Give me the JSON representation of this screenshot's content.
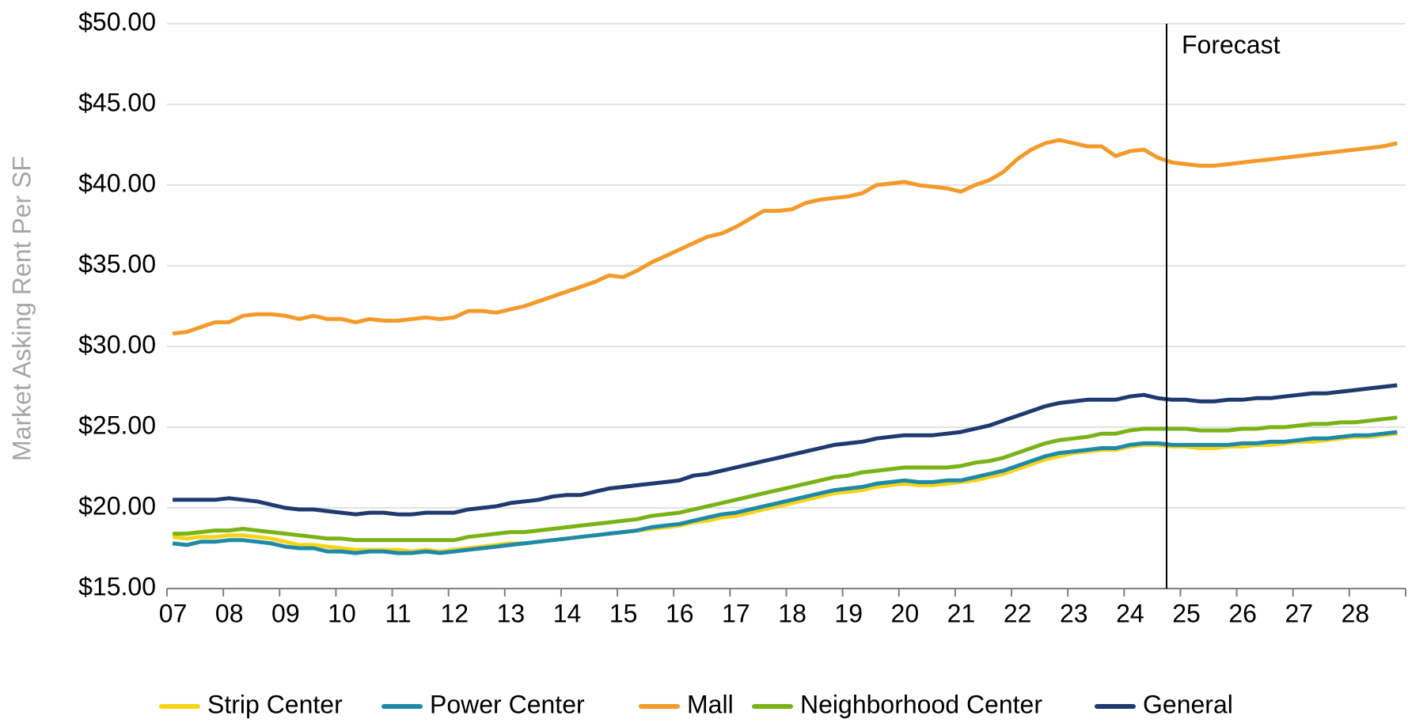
{
  "chart_data": {
    "type": "line",
    "y_label": "Market Asking Rent Per SF",
    "annotation": "Forecast",
    "categories": [
      "07",
      null,
      null,
      null,
      "08",
      null,
      null,
      null,
      "09",
      null,
      null,
      null,
      "10",
      null,
      null,
      null,
      "11",
      null,
      null,
      null,
      "12",
      null,
      null,
      null,
      "13",
      null,
      null,
      null,
      "14",
      null,
      null,
      null,
      "15",
      null,
      null,
      null,
      "16",
      null,
      null,
      null,
      "17",
      null,
      null,
      null,
      "18",
      null,
      null,
      null,
      "19",
      null,
      null,
      null,
      "20",
      null,
      null,
      null,
      "21",
      null,
      null,
      null,
      "22",
      null,
      null,
      null,
      "23",
      null,
      null,
      null,
      "24",
      null,
      null,
      null,
      "25",
      null,
      null,
      null,
      "26",
      null,
      null,
      null,
      "27",
      null,
      null,
      null,
      "28",
      null,
      null,
      null
    ],
    "series": [
      {
        "name": "Strip Center",
        "color": "#f7d417",
        "values": [
          18.2,
          18.1,
          18.2,
          18.2,
          18.3,
          18.3,
          18.2,
          18.1,
          17.9,
          17.7,
          17.7,
          17.6,
          17.5,
          17.4,
          17.4,
          17.4,
          17.4,
          17.3,
          17.4,
          17.3,
          17.4,
          17.5,
          17.6,
          17.7,
          17.8,
          17.8,
          17.9,
          18.0,
          18.1,
          18.2,
          18.3,
          18.4,
          18.5,
          18.6,
          18.7,
          18.8,
          18.9,
          19.1,
          19.2,
          19.4,
          19.5,
          19.7,
          19.9,
          20.1,
          20.3,
          20.5,
          20.7,
          20.9,
          21.0,
          21.1,
          21.3,
          21.4,
          21.5,
          21.4,
          21.4,
          21.5,
          21.6,
          21.7,
          21.9,
          22.1,
          22.4,
          22.7,
          23.0,
          23.2,
          23.4,
          23.5,
          23.6,
          23.6,
          23.8,
          23.9,
          23.9,
          23.8,
          23.8,
          23.7,
          23.7,
          23.8,
          23.8,
          23.9,
          23.9,
          24.0,
          24.1,
          24.1,
          24.2,
          24.3,
          24.4,
          24.4,
          24.5,
          24.6
        ]
      },
      {
        "name": "Power Center",
        "color": "#1f8aa8",
        "values": [
          17.8,
          17.7,
          17.9,
          17.9,
          18.0,
          18.0,
          17.9,
          17.8,
          17.6,
          17.5,
          17.5,
          17.3,
          17.3,
          17.2,
          17.3,
          17.3,
          17.2,
          17.2,
          17.3,
          17.2,
          17.3,
          17.4,
          17.5,
          17.6,
          17.7,
          17.8,
          17.9,
          18.0,
          18.1,
          18.2,
          18.3,
          18.4,
          18.5,
          18.6,
          18.8,
          18.9,
          19.0,
          19.2,
          19.4,
          19.6,
          19.7,
          19.9,
          20.1,
          20.3,
          20.5,
          20.7,
          20.9,
          21.1,
          21.2,
          21.3,
          21.5,
          21.6,
          21.7,
          21.6,
          21.6,
          21.7,
          21.7,
          21.9,
          22.1,
          22.3,
          22.6,
          22.9,
          23.2,
          23.4,
          23.5,
          23.6,
          23.7,
          23.7,
          23.9,
          24.0,
          24.0,
          23.9,
          23.9,
          23.9,
          23.9,
          23.9,
          24.0,
          24.0,
          24.1,
          24.1,
          24.2,
          24.3,
          24.3,
          24.4,
          24.5,
          24.5,
          24.6,
          24.7
        ]
      },
      {
        "name": "Mall",
        "color": "#f39a2b",
        "values": [
          30.8,
          30.9,
          31.2,
          31.5,
          31.5,
          31.9,
          32.0,
          32.0,
          31.9,
          31.7,
          31.9,
          31.7,
          31.7,
          31.5,
          31.7,
          31.6,
          31.6,
          31.7,
          31.8,
          31.7,
          31.8,
          32.2,
          32.2,
          32.1,
          32.3,
          32.5,
          32.8,
          33.1,
          33.4,
          33.7,
          34.0,
          34.4,
          34.3,
          34.7,
          35.2,
          35.6,
          36.0,
          36.4,
          36.8,
          37.0,
          37.4,
          37.9,
          38.4,
          38.4,
          38.5,
          38.9,
          39.1,
          39.2,
          39.3,
          39.5,
          40.0,
          40.1,
          40.2,
          40.0,
          39.9,
          39.8,
          39.6,
          40.0,
          40.3,
          40.8,
          41.6,
          42.2,
          42.6,
          42.8,
          42.6,
          42.4,
          42.4,
          41.8,
          42.1,
          42.2,
          41.7,
          41.4,
          41.3,
          41.2,
          41.2,
          41.3,
          41.4,
          41.5,
          41.6,
          41.7,
          41.8,
          41.9,
          42.0,
          42.1,
          42.2,
          42.3,
          42.4,
          42.6
        ]
      },
      {
        "name": "Neighborhood Center",
        "color": "#7ab317",
        "values": [
          18.4,
          18.4,
          18.5,
          18.6,
          18.6,
          18.7,
          18.6,
          18.5,
          18.4,
          18.3,
          18.2,
          18.1,
          18.1,
          18.0,
          18.0,
          18.0,
          18.0,
          18.0,
          18.0,
          18.0,
          18.0,
          18.2,
          18.3,
          18.4,
          18.5,
          18.5,
          18.6,
          18.7,
          18.8,
          18.9,
          19.0,
          19.1,
          19.2,
          19.3,
          19.5,
          19.6,
          19.7,
          19.9,
          20.1,
          20.3,
          20.5,
          20.7,
          20.9,
          21.1,
          21.3,
          21.5,
          21.7,
          21.9,
          22.0,
          22.2,
          22.3,
          22.4,
          22.5,
          22.5,
          22.5,
          22.5,
          22.6,
          22.8,
          22.9,
          23.1,
          23.4,
          23.7,
          24.0,
          24.2,
          24.3,
          24.4,
          24.6,
          24.6,
          24.8,
          24.9,
          24.9,
          24.9,
          24.9,
          24.8,
          24.8,
          24.8,
          24.9,
          24.9,
          25.0,
          25.0,
          25.1,
          25.2,
          25.2,
          25.3,
          25.3,
          25.4,
          25.5,
          25.6
        ]
      },
      {
        "name": "General",
        "color": "#1f3a6e",
        "values": [
          20.5,
          20.5,
          20.5,
          20.5,
          20.6,
          20.5,
          20.4,
          20.2,
          20.0,
          19.9,
          19.9,
          19.8,
          19.7,
          19.6,
          19.7,
          19.7,
          19.6,
          19.6,
          19.7,
          19.7,
          19.7,
          19.9,
          20.0,
          20.1,
          20.3,
          20.4,
          20.5,
          20.7,
          20.8,
          20.8,
          21.0,
          21.2,
          21.3,
          21.4,
          21.5,
          21.6,
          21.7,
          22.0,
          22.1,
          22.3,
          22.5,
          22.7,
          22.9,
          23.1,
          23.3,
          23.5,
          23.7,
          23.9,
          24.0,
          24.1,
          24.3,
          24.4,
          24.5,
          24.5,
          24.5,
          24.6,
          24.7,
          24.9,
          25.1,
          25.4,
          25.7,
          26.0,
          26.3,
          26.5,
          26.6,
          26.7,
          26.7,
          26.7,
          26.9,
          27.0,
          26.8,
          26.7,
          26.7,
          26.6,
          26.6,
          26.7,
          26.7,
          26.8,
          26.8,
          26.9,
          27.0,
          27.1,
          27.1,
          27.2,
          27.3,
          27.4,
          27.5,
          27.6
        ]
      }
    ],
    "ylim": [
      15,
      50
    ],
    "yticks": [
      {
        "value": 15,
        "label": "$15.00"
      },
      {
        "value": 20,
        "label": "$20.00"
      },
      {
        "value": 25,
        "label": "$25.00"
      },
      {
        "value": 30,
        "label": "$30.00"
      },
      {
        "value": 35,
        "label": "$35.00"
      },
      {
        "value": 40,
        "label": "$40.00"
      },
      {
        "value": 45,
        "label": "$45.00"
      },
      {
        "value": 50,
        "label": "$50.00"
      }
    ],
    "grid": true,
    "legend": "bottom"
  }
}
